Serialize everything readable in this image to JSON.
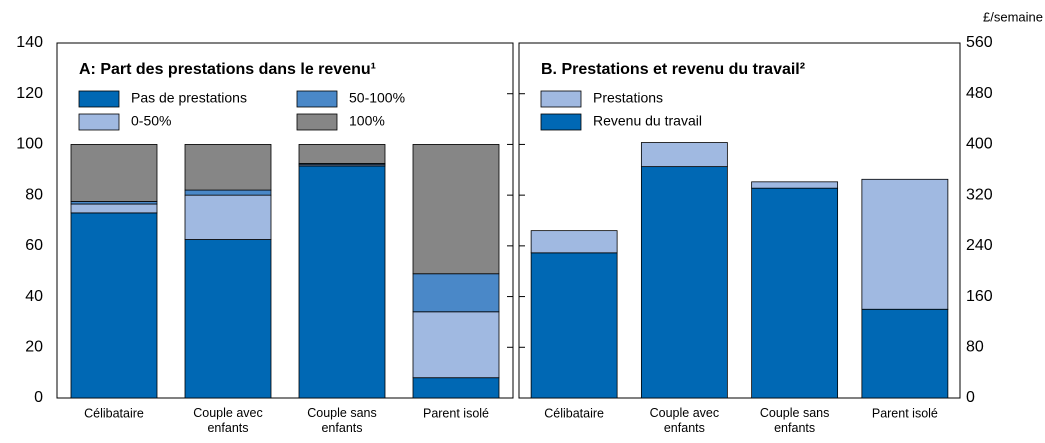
{
  "chart_data": [
    {
      "type": "stacked_bar",
      "title": "A: Part des prestations dans le revenu¹",
      "categories": [
        "Célibataire",
        "Couple avec enfants",
        "Couple sans enfants",
        "Parent isolé"
      ],
      "series": [
        {
          "name": "Pas de prestations",
          "color": "#0068b4",
          "values": [
            73,
            62.5,
            91.5,
            8
          ]
        },
        {
          "name": "0-50%",
          "color": "#a0b9e1",
          "values": [
            3.5,
            17.5,
            0.5,
            26
          ]
        },
        {
          "name": "50-100%",
          "color": "#4a88c8",
          "values": [
            1,
            2,
            0.5,
            15
          ]
        },
        {
          "name": "100%",
          "color": "#868686",
          "values": [
            22.5,
            18,
            7.5,
            51
          ]
        }
      ],
      "ylim": [
        0,
        140
      ],
      "yticks": [
        0,
        20,
        40,
        60,
        80,
        100,
        120,
        140
      ],
      "axis_side": "left",
      "legend_columns": 2
    },
    {
      "type": "stacked_bar",
      "title": "B. Prestations et revenu du travail²",
      "ylabel": "£/semaine",
      "categories": [
        "Célibataire",
        "Couple avec enfants",
        "Couple sans enfants",
        "Parent isolé"
      ],
      "series": [
        {
          "name": "Revenu du travail",
          "color": "#0068b4",
          "values": [
            229,
            365,
            331,
            140
          ]
        },
        {
          "name": "Prestations",
          "color": "#a0b9e1",
          "values": [
            35,
            38,
            10,
            205
          ]
        }
      ],
      "ylim": [
        0,
        560
      ],
      "yticks": [
        0,
        80,
        160,
        240,
        320,
        400,
        480,
        560
      ],
      "axis_side": "right",
      "legend_columns": 1,
      "legend_reverse": true
    }
  ]
}
